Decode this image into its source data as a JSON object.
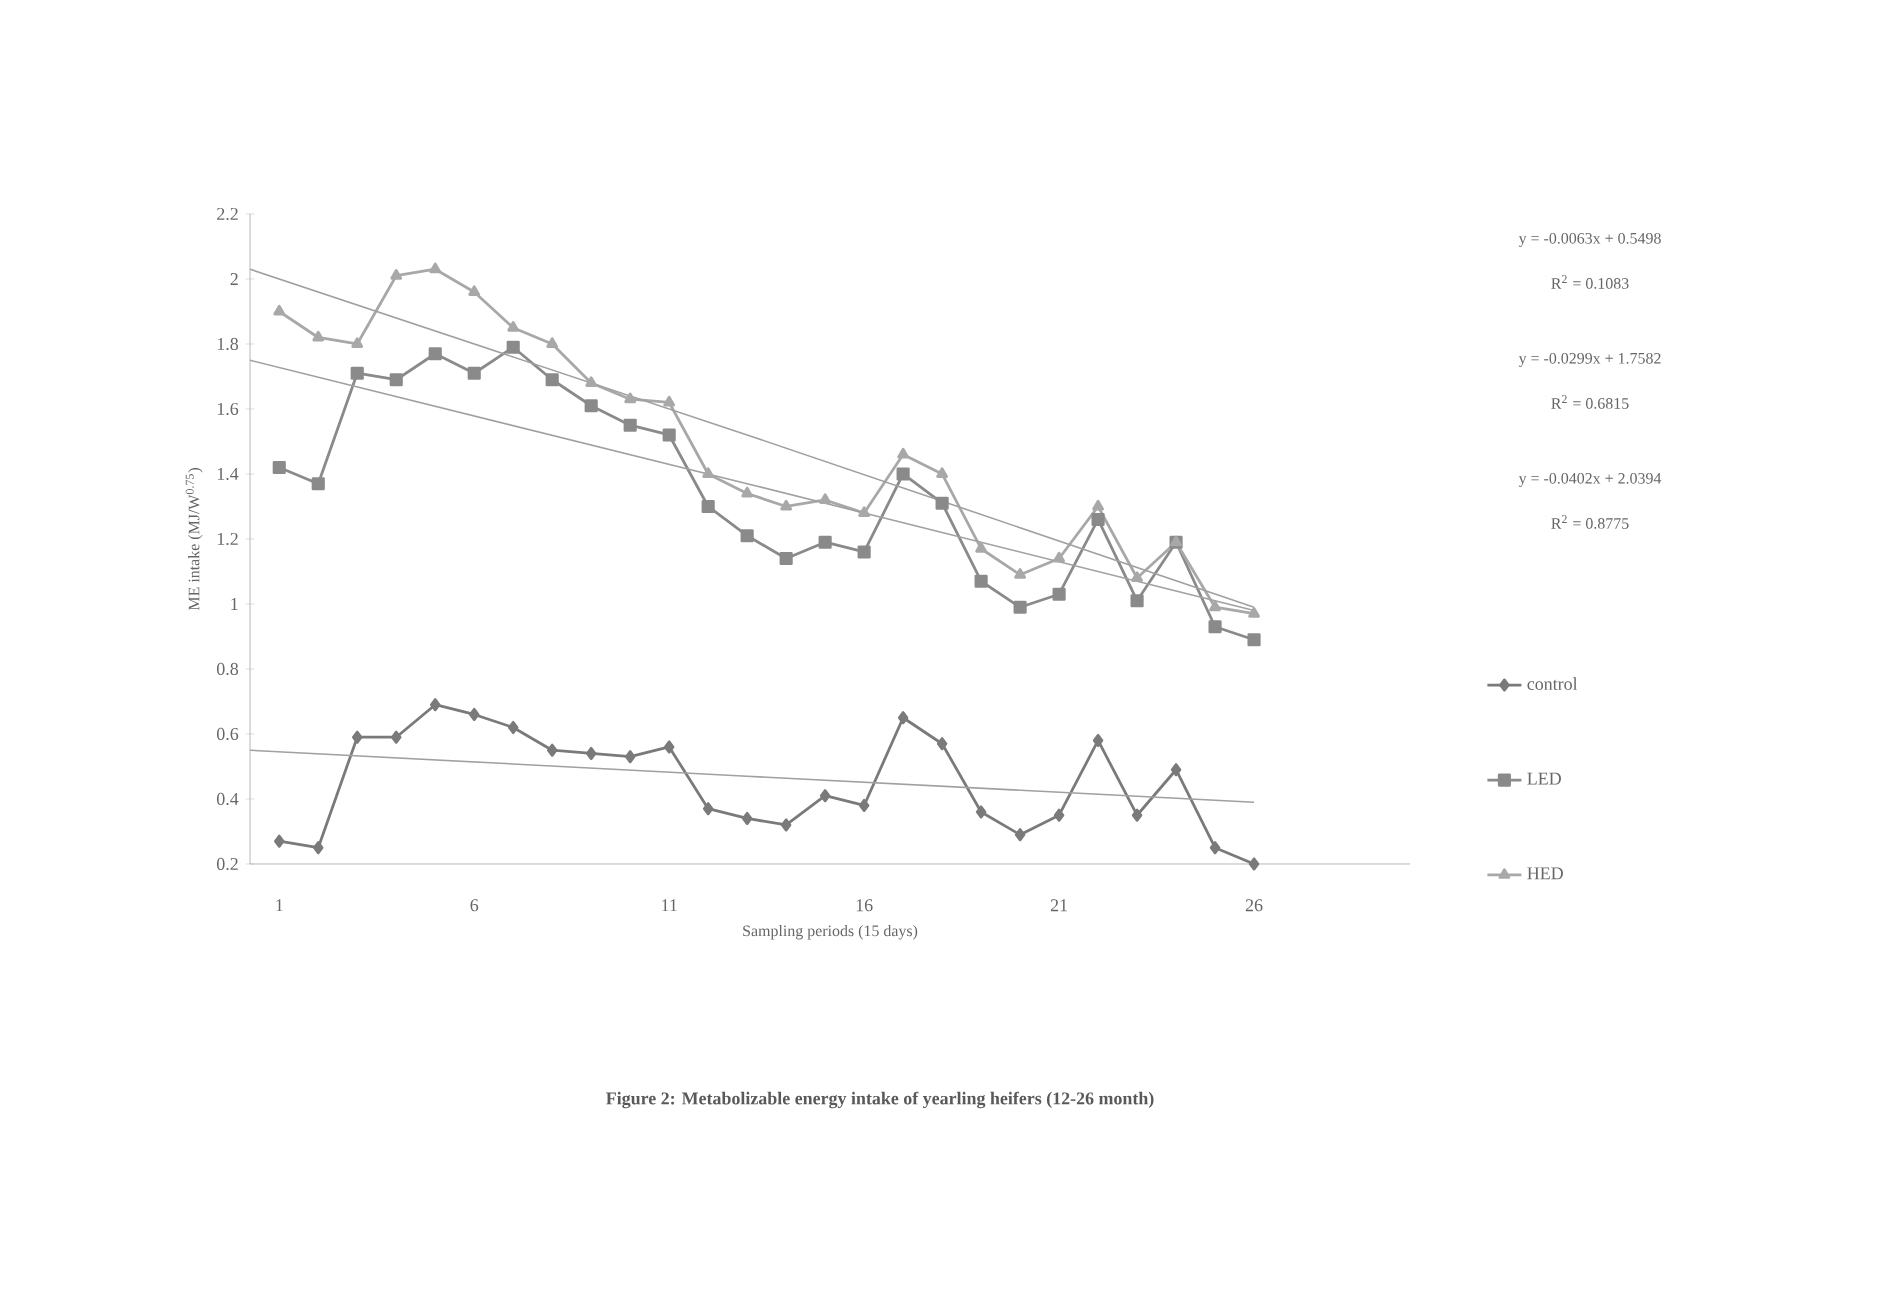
{
  "chart_data": {
    "type": "line",
    "title": "Figure 2: Metabolizable energy intake of yearling heifers (12-26 month)",
    "xlabel": "Sampling periods (15 days)",
    "ylabel": "ME intake (MJ/W$^{0.75}$)",
    "x": [
      1,
      2,
      3,
      4,
      5,
      6,
      7,
      8,
      9,
      10,
      11,
      12,
      13,
      14,
      15,
      16,
      17,
      18,
      19,
      20,
      21,
      22,
      23,
      24,
      25,
      26
    ],
    "xlim": [
      0.25,
      30
    ],
    "xticks": [
      1,
      6,
      11,
      16,
      21,
      26
    ],
    "ylim": [
      0.2,
      2.2
    ],
    "yticks": [
      0.2,
      0.4,
      0.6,
      0.8,
      1,
      1.2,
      1.4,
      1.6,
      1.8,
      2,
      2.2
    ],
    "legend": "right",
    "grid": false,
    "series": [
      {
        "name": "control",
        "color": "#7a7a7a",
        "marker": "diamond",
        "values": [
          0.27,
          0.25,
          0.59,
          0.59,
          0.69,
          0.66,
          0.62,
          0.55,
          0.54,
          0.53,
          0.56,
          0.37,
          0.34,
          0.32,
          0.41,
          0.38,
          0.65,
          0.57,
          0.36,
          0.29,
          0.35,
          0.58,
          0.35,
          0.49,
          0.25,
          0.2
        ]
      },
      {
        "name": "LED",
        "color": "#8a8a8a",
        "marker": "square",
        "values": [
          1.42,
          1.37,
          1.71,
          1.69,
          1.77,
          1.71,
          1.79,
          1.69,
          1.61,
          1.55,
          1.52,
          1.3,
          1.21,
          1.14,
          1.19,
          1.16,
          1.4,
          1.31,
          1.07,
          0.99,
          1.03,
          1.26,
          1.01,
          1.19,
          0.93,
          0.89
        ]
      },
      {
        "name": "HED",
        "color": "#a8a8a8",
        "marker": "triangle",
        "values": [
          1.9,
          1.82,
          1.8,
          2.01,
          2.03,
          1.96,
          1.85,
          1.8,
          1.68,
          1.63,
          1.62,
          1.4,
          1.34,
          1.3,
          1.32,
          1.28,
          1.46,
          1.4,
          1.17,
          1.09,
          1.14,
          1.3,
          1.08,
          1.19,
          0.99,
          0.97
        ]
      },
      {
        "type": "line",
        "color": "#a0a0a0",
        "marker": "none",
        "x": [
          0.25,
          13,
          26
        ],
        "values": [
          0.55,
          0.47,
          0.39
        ]
      },
      {
        "type": "line",
        "color": "#a0a0a0",
        "marker": "none",
        "x": [
          0.25,
          13,
          26
        ],
        "values": [
          1.75,
          1.37,
          0.98
        ]
      },
      {
        "type": "line",
        "color": "#a0a0a0",
        "marker": "none",
        "x": [
          0.25,
          13,
          26
        ],
        "values": [
          2.03,
          1.52,
          0.99
        ]
      }
    ],
    "annotations": [
      "y = -0.0063x + 0.5498",
      "R$^{2}$ = 0.1083",
      "y = -0.0299x + 1.7582",
      "R$^{2}$ = 0.6815",
      "y = -0.0402x + 2.0394",
      "R$^{2}$ = 0.8775"
    ]
  }
}
